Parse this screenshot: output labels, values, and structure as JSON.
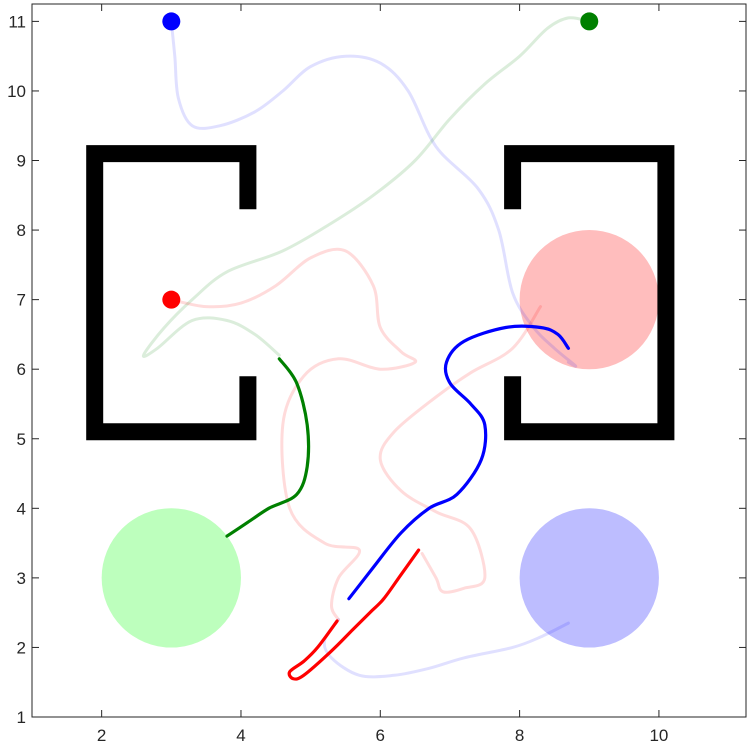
{
  "chart_data": {
    "type": "line",
    "title": "",
    "xlabel": "",
    "ylabel": "",
    "xlim": [
      1,
      11.25
    ],
    "ylim": [
      1,
      11.25
    ],
    "xticks": [
      2,
      4,
      6,
      8,
      10
    ],
    "yticks": [
      1,
      2,
      3,
      4,
      5,
      6,
      7,
      8,
      9,
      10,
      11
    ],
    "xtick_labels": [
      "2",
      "4",
      "6",
      "8",
      "10"
    ],
    "ytick_labels": [
      "1",
      "2",
      "3",
      "4",
      "5",
      "6",
      "7",
      "8",
      "9",
      "10",
      "11"
    ],
    "grid": false,
    "colors": {
      "red": "#ff0000",
      "blue": "#0000ff",
      "green": "#008000",
      "red_goal": "#ffbdbd",
      "blue_goal": "#bdbdff",
      "green_goal": "#bdffbd",
      "walls": "#000000"
    },
    "walls": [
      {
        "points": [
          [
            4.1,
            8.3
          ],
          [
            4.1,
            9.1
          ],
          [
            1.9,
            9.1
          ],
          [
            1.9,
            5.1
          ],
          [
            4.1,
            5.1
          ],
          [
            4.1,
            5.9
          ]
        ]
      },
      {
        "points": [
          [
            7.9,
            8.3
          ],
          [
            7.9,
            9.1
          ],
          [
            10.1,
            9.1
          ],
          [
            10.1,
            5.1
          ],
          [
            7.9,
            5.1
          ],
          [
            7.9,
            5.9
          ]
        ]
      }
    ],
    "goals": [
      {
        "color": "red",
        "center": [
          9,
          7
        ],
        "radius": 1
      },
      {
        "color": "green",
        "center": [
          3,
          3
        ],
        "radius": 1
      },
      {
        "color": "blue",
        "center": [
          9,
          3
        ],
        "radius": 1
      }
    ],
    "start_markers": [
      {
        "color": "blue",
        "x": 3,
        "y": 11
      },
      {
        "color": "green",
        "x": 9,
        "y": 11
      },
      {
        "color": "red",
        "x": 3,
        "y": 7
      }
    ],
    "series": [
      {
        "color": "blue",
        "style": "faded",
        "points": [
          [
            3,
            11
          ],
          [
            3.05,
            10.5
          ],
          [
            3.1,
            9.9
          ],
          [
            3.3,
            9.5
          ],
          [
            3.7,
            9.5
          ],
          [
            4.2,
            9.7
          ],
          [
            4.6,
            10.0
          ],
          [
            5.0,
            10.35
          ],
          [
            5.5,
            10.5
          ],
          [
            6.0,
            10.4
          ],
          [
            6.4,
            10.0
          ],
          [
            6.8,
            9.2
          ],
          [
            7.4,
            8.6
          ],
          [
            7.7,
            8.0
          ],
          [
            7.9,
            7.1
          ],
          [
            8.2,
            6.6
          ],
          [
            8.5,
            6.3
          ],
          [
            8.8,
            6.05
          ],
          [
            8.7,
            6.1
          ]
        ]
      },
      {
        "color": "blue",
        "style": "faded",
        "points": [
          [
            8.7,
            2.35
          ],
          [
            8.3,
            2.15
          ],
          [
            7.9,
            2.0
          ],
          [
            7.2,
            1.85
          ],
          [
            6.7,
            1.7
          ],
          [
            6.2,
            1.6
          ],
          [
            5.7,
            1.6
          ],
          [
            5.3,
            1.85
          ],
          [
            5.2,
            2.1
          ],
          [
            5.4,
            2.4
          ]
        ]
      },
      {
        "color": "green",
        "style": "faded",
        "points": [
          [
            9,
            11
          ],
          [
            8.7,
            11.05
          ],
          [
            8.4,
            10.9
          ],
          [
            8.0,
            10.5
          ],
          [
            7.5,
            10.1
          ],
          [
            7.0,
            9.6
          ],
          [
            6.5,
            9.0
          ],
          [
            5.9,
            8.5
          ],
          [
            5.3,
            8.1
          ],
          [
            4.6,
            7.7
          ],
          [
            3.8,
            7.4
          ],
          [
            3.3,
            7.0
          ],
          [
            2.9,
            6.6
          ],
          [
            2.6,
            6.2
          ],
          [
            2.8,
            6.3
          ],
          [
            3.3,
            6.7
          ],
          [
            3.8,
            6.7
          ],
          [
            4.2,
            6.5
          ],
          [
            4.55,
            6.2
          ]
        ]
      },
      {
        "color": "red",
        "style": "faded",
        "points": [
          [
            3,
            7
          ],
          [
            3.5,
            6.9
          ],
          [
            4.0,
            6.95
          ],
          [
            4.5,
            7.2
          ],
          [
            5.0,
            7.6
          ],
          [
            5.5,
            7.7
          ],
          [
            5.9,
            7.2
          ],
          [
            6.0,
            6.6
          ],
          [
            6.3,
            6.25
          ],
          [
            6.5,
            6.1
          ],
          [
            6.0,
            6.0
          ],
          [
            5.4,
            6.15
          ],
          [
            4.9,
            5.9
          ],
          [
            4.6,
            5.2
          ],
          [
            4.7,
            4.0
          ],
          [
            5.2,
            3.5
          ],
          [
            5.7,
            3.4
          ],
          [
            5.4,
            3.0
          ],
          [
            5.3,
            2.6
          ],
          [
            5.4,
            2.4
          ]
        ]
      },
      {
        "color": "red",
        "style": "faded",
        "points": [
          [
            8.3,
            6.9
          ],
          [
            7.9,
            6.3
          ],
          [
            7.3,
            5.95
          ],
          [
            6.8,
            5.6
          ],
          [
            6.2,
            5.1
          ],
          [
            6.0,
            4.7
          ],
          [
            6.3,
            4.25
          ],
          [
            6.8,
            3.95
          ],
          [
            7.3,
            3.7
          ],
          [
            7.5,
            3.0
          ],
          [
            7.2,
            2.85
          ],
          [
            6.9,
            2.8
          ],
          [
            6.8,
            3.0
          ],
          [
            6.6,
            3.35
          ]
        ]
      },
      {
        "color": "green",
        "style": "bold",
        "points": [
          [
            4.55,
            6.15
          ],
          [
            4.8,
            5.8
          ],
          [
            4.95,
            5.2
          ],
          [
            4.95,
            4.6
          ],
          [
            4.8,
            4.2
          ],
          [
            4.4,
            4.0
          ],
          [
            4.1,
            3.8
          ],
          [
            3.8,
            3.6
          ]
        ]
      },
      {
        "color": "blue",
        "style": "bold",
        "points": [
          [
            5.55,
            2.7
          ],
          [
            5.9,
            3.15
          ],
          [
            6.3,
            3.65
          ],
          [
            6.7,
            4.0
          ],
          [
            7.1,
            4.2
          ],
          [
            7.45,
            4.7
          ],
          [
            7.5,
            5.2
          ],
          [
            7.3,
            5.5
          ],
          [
            7.0,
            5.8
          ],
          [
            6.95,
            6.1
          ],
          [
            7.2,
            6.4
          ],
          [
            7.8,
            6.6
          ],
          [
            8.3,
            6.6
          ],
          [
            8.55,
            6.5
          ],
          [
            8.7,
            6.3
          ]
        ]
      },
      {
        "color": "red",
        "style": "bold",
        "points": [
          [
            6.55,
            3.4
          ],
          [
            6.3,
            3.05
          ],
          [
            6.05,
            2.7
          ],
          [
            5.85,
            2.5
          ],
          [
            5.6,
            2.25
          ],
          [
            5.3,
            1.95
          ],
          [
            4.9,
            1.6
          ],
          [
            4.75,
            1.55
          ],
          [
            4.7,
            1.65
          ],
          [
            4.9,
            1.8
          ],
          [
            5.1,
            2.0
          ],
          [
            5.38,
            2.38
          ]
        ]
      }
    ]
  }
}
